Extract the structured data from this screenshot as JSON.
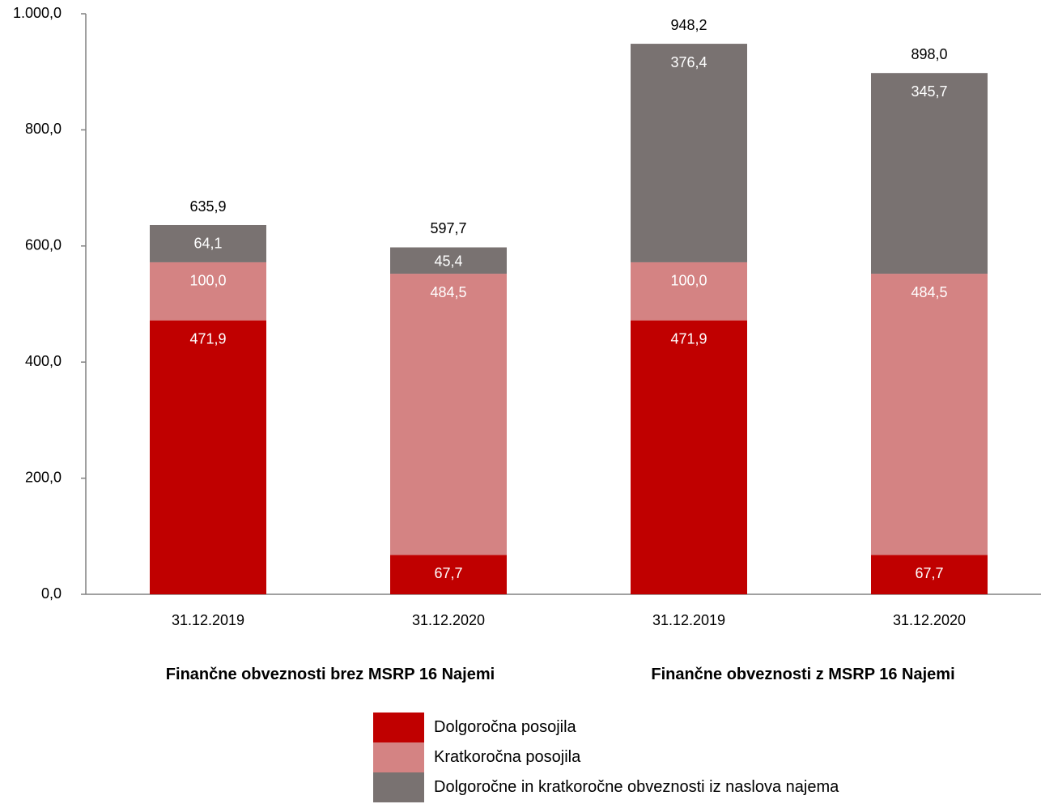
{
  "chart_data": {
    "type": "bar",
    "stacked": true,
    "categories": [
      "31.12.2019",
      "31.12.2020",
      "31.12.2019",
      "31.12.2020"
    ],
    "groups": [
      {
        "label": "Finančne obveznosti brez MSRP 16 Najemi",
        "categories": [
          0,
          1
        ]
      },
      {
        "label": "Finančne obveznosti z MSRP 16 Najemi",
        "categories": [
          2,
          3
        ]
      }
    ],
    "series": [
      {
        "name": "Dolgoročna posojila",
        "color": "#c00000",
        "values": [
          471.9,
          67.7,
          471.9,
          67.7
        ],
        "labels": [
          "471,9",
          "67,7",
          "471,9",
          "67,7"
        ]
      },
      {
        "name": "Kratkoročna posojila",
        "color": "#d48383",
        "values": [
          100.0,
          484.5,
          100.0,
          484.5
        ],
        "labels": [
          "100,0",
          "484,5",
          "100,0",
          "484,5"
        ]
      },
      {
        "name": "Dolgoročne in kratkoročne obveznosti iz naslova najema",
        "color": "#797271",
        "values": [
          64.1,
          45.4,
          376.4,
          345.7
        ],
        "labels": [
          "64,1",
          "45,4",
          "376,4",
          "345,7"
        ]
      }
    ],
    "totals": [
      635.9,
      597.7,
      948.2,
      898.0
    ],
    "total_labels": [
      "635,9",
      "597,7",
      "948,2",
      "898,0"
    ],
    "ylim": [
      0,
      1000
    ],
    "yticks": [
      0,
      200,
      400,
      600,
      800,
      1000
    ],
    "ytick_labels": [
      "0,0",
      "200,0",
      "400,0",
      "600,0",
      "800,0",
      "1.000,0"
    ],
    "grid": false,
    "legend_position": "bottom"
  }
}
